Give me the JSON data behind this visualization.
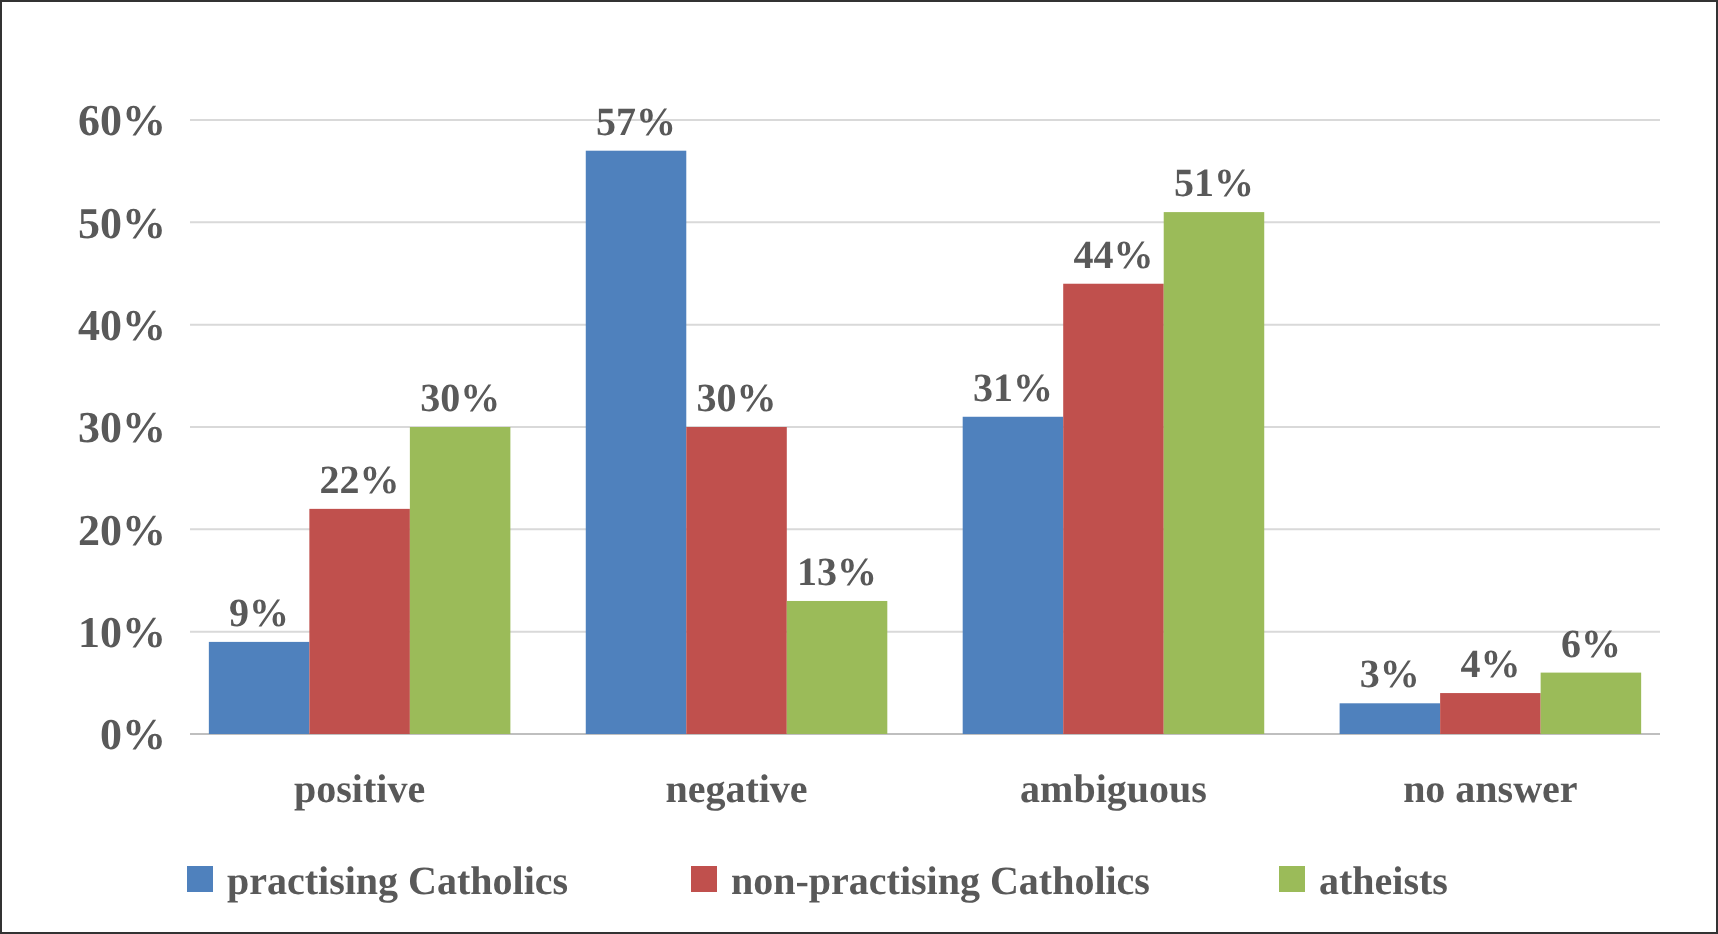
{
  "chart_data": {
    "type": "bar",
    "categories": [
      "positive",
      "negative",
      "ambiguous",
      "no answer"
    ],
    "series": [
      {
        "name": "practising Catholics",
        "color": "#4f81bd",
        "values": [
          9,
          57,
          31,
          3
        ],
        "value_labels": [
          "9%",
          "57%",
          "31%",
          "3%"
        ]
      },
      {
        "name": "non-practising Catholics",
        "color": "#c0504d",
        "values": [
          22,
          30,
          44,
          4
        ],
        "value_labels": [
          "22%",
          "30%",
          "44%",
          "4%"
        ]
      },
      {
        "name": "atheists",
        "color": "#9bbb59",
        "values": [
          30,
          13,
          51,
          6
        ],
        "value_labels": [
          "30%",
          "13%",
          "51%",
          "6%"
        ]
      }
    ],
    "ylim": [
      0,
      60
    ],
    "yticks": [
      {
        "value": 0,
        "label": "0%"
      },
      {
        "value": 10,
        "label": "10%"
      },
      {
        "value": 20,
        "label": "20%"
      },
      {
        "value": 30,
        "label": "30%"
      },
      {
        "value": 40,
        "label": "40%"
      },
      {
        "value": 50,
        "label": "50%"
      },
      {
        "value": 60,
        "label": "60%"
      }
    ],
    "grid": "y",
    "legend": "bottom"
  }
}
